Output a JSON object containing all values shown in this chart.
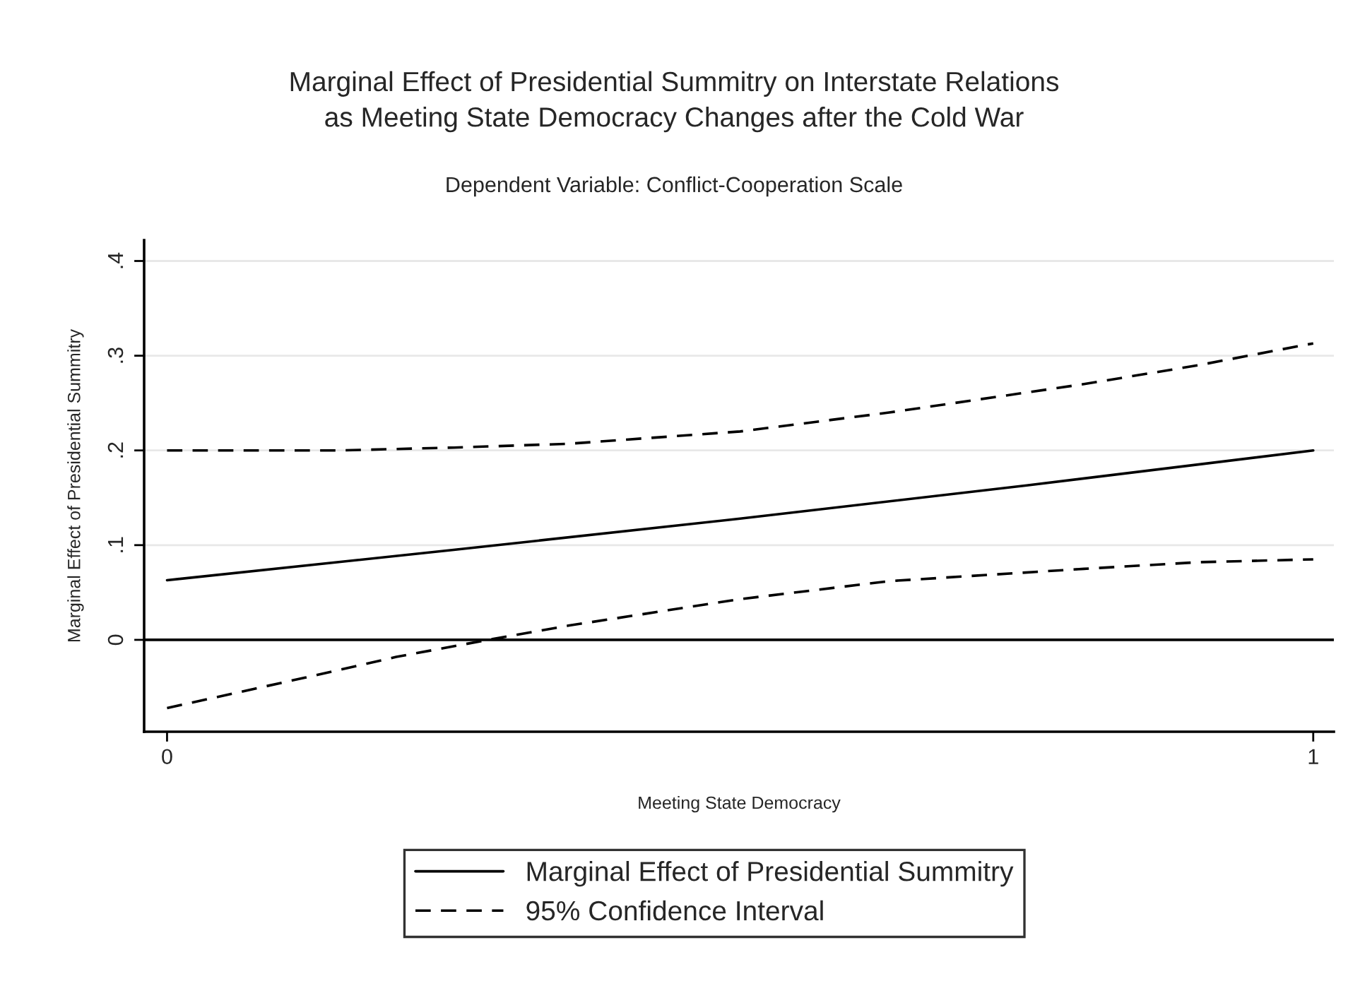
{
  "chart_data": {
    "type": "line",
    "title": "Marginal Effect of Presidential Summitry on Interstate Relations\nas Meeting State Democracy Changes after the Cold War",
    "subtitle": "Dependent Variable: Conflict-Cooperation Scale",
    "xlabel": "Meeting State Democracy",
    "ylabel": "Marginal Effect of Presidential Summitry",
    "series": [
      {
        "name": "Marginal Effect of Presidential Summitry",
        "color": "#000000",
        "line_style": "solid",
        "x": [
          0,
          0.25,
          0.5,
          0.75,
          1
        ],
        "values": [
          0.063,
          0.095,
          0.128,
          0.163,
          0.2
        ]
      },
      {
        "name": "95% Confidence Interval",
        "color": "#000000",
        "line_style": "dashed",
        "x": [
          0,
          0.15,
          0.25,
          0.35,
          0.5,
          0.63,
          0.8,
          0.9,
          1
        ],
        "values": [
          0.2,
          0.2,
          0.203,
          0.207,
          0.22,
          0.24,
          0.27,
          0.29,
          0.313
        ]
      },
      {
        "color": "#000000",
        "line_style": "dashed",
        "x": [
          0,
          0.12,
          0.2,
          0.28,
          0.35,
          0.5,
          0.63,
          0.8,
          0.9,
          1
        ],
        "values": [
          -0.072,
          -0.04,
          -0.018,
          0,
          0.015,
          0.043,
          0.062,
          0.075,
          0.082,
          0.085
        ]
      }
    ],
    "xlim": [
      -0.02,
      1.018
    ],
    "ylim": [
      -0.097,
      0.422
    ],
    "xticks": [
      0,
      1
    ],
    "yticks": [
      0,
      {
        "value": 0.1,
        "label": ".1"
      },
      {
        "value": 0.2,
        "label": ".2"
      },
      {
        "value": 0.3,
        "label": ".3"
      },
      {
        "value": 0.4,
        "label": ".4"
      }
    ],
    "ref_lines": [
      {
        "axis": "y",
        "value": 0,
        "color": "#000000"
      }
    ],
    "grid": "y",
    "legend": "bottom"
  }
}
